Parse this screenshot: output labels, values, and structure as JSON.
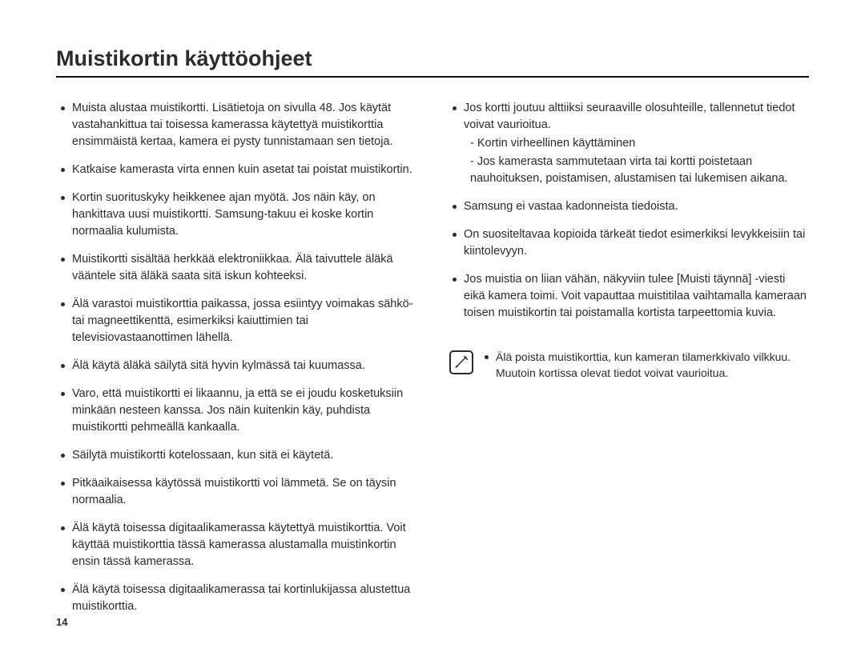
{
  "title": "Muistikortin käyttöohjeet",
  "pageNumber": "14",
  "left": {
    "items": [
      "Muista alustaa muistikortti. Lisätietoja on sivulla 48. Jos käytät vastahankittua tai toisessa kamerassa käytettyä muistikorttia ensimmäistä kertaa, kamera ei pysty tunnistamaan sen tietoja.",
      "Katkaise kamerasta virta ennen kuin asetat tai poistat muistikortin.",
      "Kortin suorituskyky heikkenee ajan myötä. Jos näin käy, on hankittava uusi muistikortti. Samsung-takuu ei koske kortin normaalia kulumista.",
      "Muistikortti sisältää herkkää elektroniikkaa. Älä taivuttele äläkä vääntele sitä äläkä saata sitä iskun kohteeksi.",
      "Älä varastoi muistikorttia paikassa, jossa esiintyy voimakas sähkö- tai magneettikenttä, esimerkiksi kaiuttimien tai televisiovastaanottimen lähellä.",
      "Älä käytä äläkä säilytä sitä hyvin kylmässä tai kuumassa.",
      "Varo, että muistikortti ei likaannu, ja että se ei joudu kosketuksiin minkään nesteen kanssa. Jos näin kuitenkin käy, puhdista muistikortti pehmeällä kankaalla.",
      "Säilytä muistikortti kotelossaan, kun sitä ei käytetä.",
      "Pitkäaikaisessa käytössä muistikortti voi lämmetä. Se on täysin normaalia.",
      "Älä käytä toisessa digitaalikamerassa käytettyä muistikorttia. Voit käyttää muistikorttia tässä kamerassa alustamalla muistinkortin ensin tässä kamerassa.",
      "Älä käytä toisessa digitaalikamerassa tai kortinlukijassa alustettua muistikorttia."
    ]
  },
  "right": {
    "items": [
      {
        "text": "Jos kortti joutuu alttiiksi seuraaville olosuhteille, tallennetut tiedot voivat vaurioitua.",
        "sub": [
          "Kortin virheellinen käyttäminen",
          "Jos kamerasta sammutetaan virta tai kortti poistetaan nauhoituksen, poistamisen, alustamisen tai lukemisen aikana."
        ]
      },
      {
        "text": "Samsung ei vastaa kadonneista tiedoista."
      },
      {
        "text": "On suositeltavaa kopioida tärkeät tiedot esimerkiksi levykkeisiin tai kiintolevyyn."
      },
      {
        "text": "Jos muistia on liian vähän, näkyviin tulee [Muisti täynnä] -viesti eikä kamera toimi. Voit vapauttaa muistitilaa vaihtamalla kameraan toisen muistikortin tai poistamalla kortista tarpeettomia kuvia."
      }
    ]
  },
  "note": "Älä poista muistikorttia, kun kameran tilamerkkivalo vilkkuu. Muutoin kortissa olevat tiedot voivat vaurioitua."
}
